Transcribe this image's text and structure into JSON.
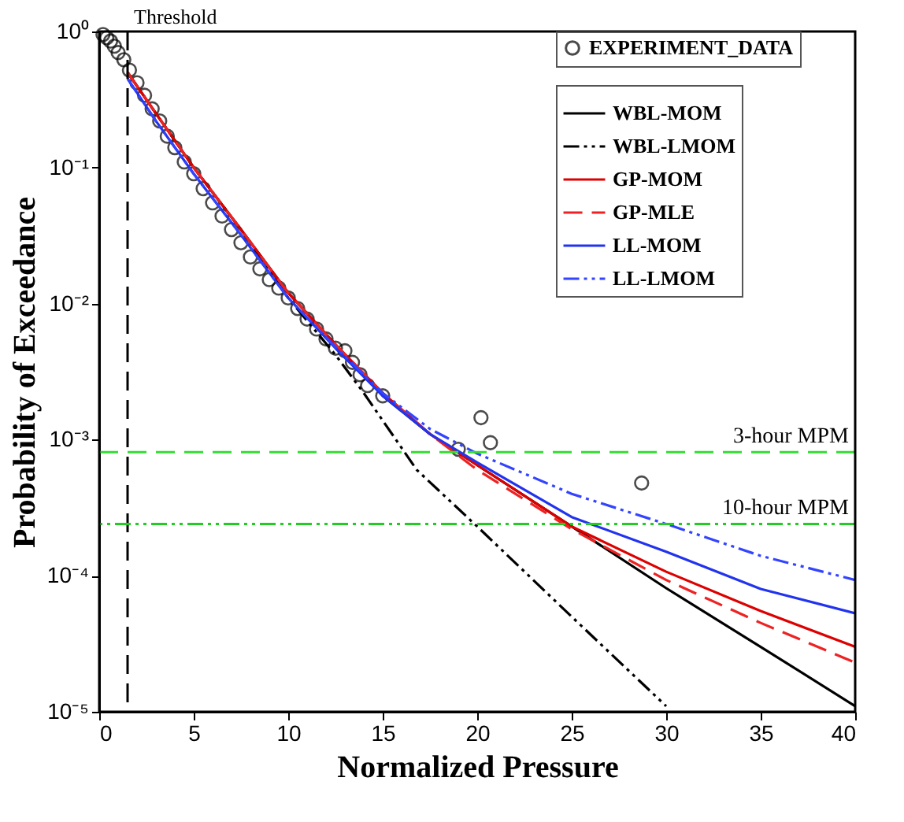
{
  "chart_data": {
    "type": "line",
    "xlabel": "Normalized Pressure",
    "ylabel": "Probability of Exceedance",
    "xlim": [
      0,
      40
    ],
    "xticks": [
      0,
      5,
      10,
      15,
      20,
      25,
      30,
      35,
      40
    ],
    "ylim": [
      1e-05,
      1
    ],
    "yticks": [
      {
        "value": 1,
        "label": "10⁰"
      },
      {
        "value": 0.1,
        "label": "10⁻¹"
      },
      {
        "value": 0.01,
        "label": "10⁻²"
      },
      {
        "value": 0.001,
        "label": "10⁻³"
      },
      {
        "value": 0.0001,
        "label": "10⁻⁴"
      },
      {
        "value": 1e-05,
        "label": "10⁻⁵"
      }
    ],
    "log": "y",
    "grid": false,
    "legend": "top right",
    "series": [
      {
        "name": "EXPERIMENT_DATA",
        "type": "scatter",
        "marker": "circle",
        "color": "#000000",
        "x": [
          0.2,
          0.4,
          0.6,
          0.8,
          1.0,
          1.3,
          1.6,
          2.0,
          2.4,
          2.8,
          3.2,
          3.6,
          4.0,
          4.5,
          5.0,
          5.5,
          6.0,
          6.5,
          7.0,
          7.5,
          8.0,
          8.5,
          9.0,
          9.5,
          10.0,
          10.5,
          11.0,
          11.5,
          12.0,
          12.5,
          13.0,
          13.4,
          13.8,
          14.2,
          15.0,
          19.0,
          20.2,
          20.7,
          28.7
        ],
        "values": [
          0.95,
          0.9,
          0.85,
          0.78,
          0.7,
          0.62,
          0.52,
          0.42,
          0.34,
          0.27,
          0.22,
          0.17,
          0.14,
          0.11,
          0.09,
          0.07,
          0.055,
          0.044,
          0.035,
          0.028,
          0.022,
          0.018,
          0.015,
          0.013,
          0.011,
          0.0092,
          0.0077,
          0.0065,
          0.0055,
          0.0047,
          0.0045,
          0.0037,
          0.003,
          0.0025,
          0.0021,
          0.00085,
          0.00145,
          0.00095,
          0.00048
        ]
      },
      {
        "name": "WBL-MOM",
        "color": "#000000",
        "line_style": "solid",
        "x": [
          1.5,
          3,
          5,
          7.5,
          10,
          12.5,
          15,
          17.5,
          20,
          25,
          30,
          35,
          40
        ],
        "values": [
          0.5,
          0.25,
          0.1,
          0.035,
          0.012,
          0.005,
          0.0021,
          0.0011,
          0.00065,
          0.00023,
          8.1e-05,
          3e-05,
          1.1e-05
        ]
      },
      {
        "name": "WBL-LMOM",
        "color": "#000000",
        "line_style": "dashdot",
        "x": [
          1.5,
          3,
          5,
          7.5,
          10,
          12.5,
          14,
          16.8,
          20,
          25,
          30
        ],
        "values": [
          0.5,
          0.25,
          0.1,
          0.035,
          0.011,
          0.0042,
          0.0022,
          0.0006,
          0.00023,
          5e-05,
          1.1e-05
        ]
      },
      {
        "name": "GP-MOM",
        "color": "#dd0000",
        "line_style": "solid",
        "x": [
          1.5,
          3,
          5,
          7.5,
          10,
          12.5,
          15,
          17.5,
          20,
          25,
          30,
          35,
          40
        ],
        "values": [
          0.5,
          0.25,
          0.1,
          0.035,
          0.012,
          0.005,
          0.0022,
          0.0011,
          0.00065,
          0.00023,
          0.000107,
          5.5e-05,
          3e-05
        ]
      },
      {
        "name": "GP-MLE",
        "color": "#ee2222",
        "line_style": "dashed",
        "x": [
          1.5,
          3,
          5,
          7.5,
          10,
          12.5,
          15,
          17.5,
          20,
          25,
          30,
          35,
          40
        ],
        "values": [
          0.5,
          0.25,
          0.1,
          0.035,
          0.012,
          0.005,
          0.0022,
          0.0011,
          0.0006,
          0.00022,
          9.3e-05,
          4.5e-05,
          2.3e-05
        ]
      },
      {
        "name": "LL-MOM",
        "color": "#2233ee",
        "line_style": "solid",
        "x": [
          1.5,
          3,
          5,
          7.5,
          10,
          12.5,
          15,
          17.5,
          20,
          25,
          30,
          35,
          40
        ],
        "values": [
          0.45,
          0.22,
          0.09,
          0.032,
          0.011,
          0.0047,
          0.0021,
          0.0011,
          0.00068,
          0.00027,
          0.00015,
          8e-05,
          5.3e-05
        ]
      },
      {
        "name": "LL-LMOM",
        "color": "#3344ff",
        "line_style": "dashdot",
        "x": [
          1.5,
          3,
          5,
          7.5,
          10,
          12.5,
          15,
          17.5,
          20,
          25,
          30,
          35,
          40
        ],
        "values": [
          0.45,
          0.22,
          0.09,
          0.032,
          0.011,
          0.0048,
          0.0022,
          0.0012,
          0.00079,
          0.0004,
          0.00024,
          0.00014,
          9.3e-05
        ]
      }
    ],
    "ref_lines": [
      {
        "axis": "x",
        "value": 1.5,
        "label": "Threshold",
        "color": "#000000",
        "line_style": "dashed"
      },
      {
        "axis": "y",
        "value": 0.00081,
        "label": "3-hour MPM",
        "color": "#33dd33",
        "line_style": "dashed"
      },
      {
        "axis": "y",
        "value": 0.00024,
        "label": "10-hour MPM",
        "color": "#22cc22",
        "line_style": "dashdot"
      }
    ]
  }
}
